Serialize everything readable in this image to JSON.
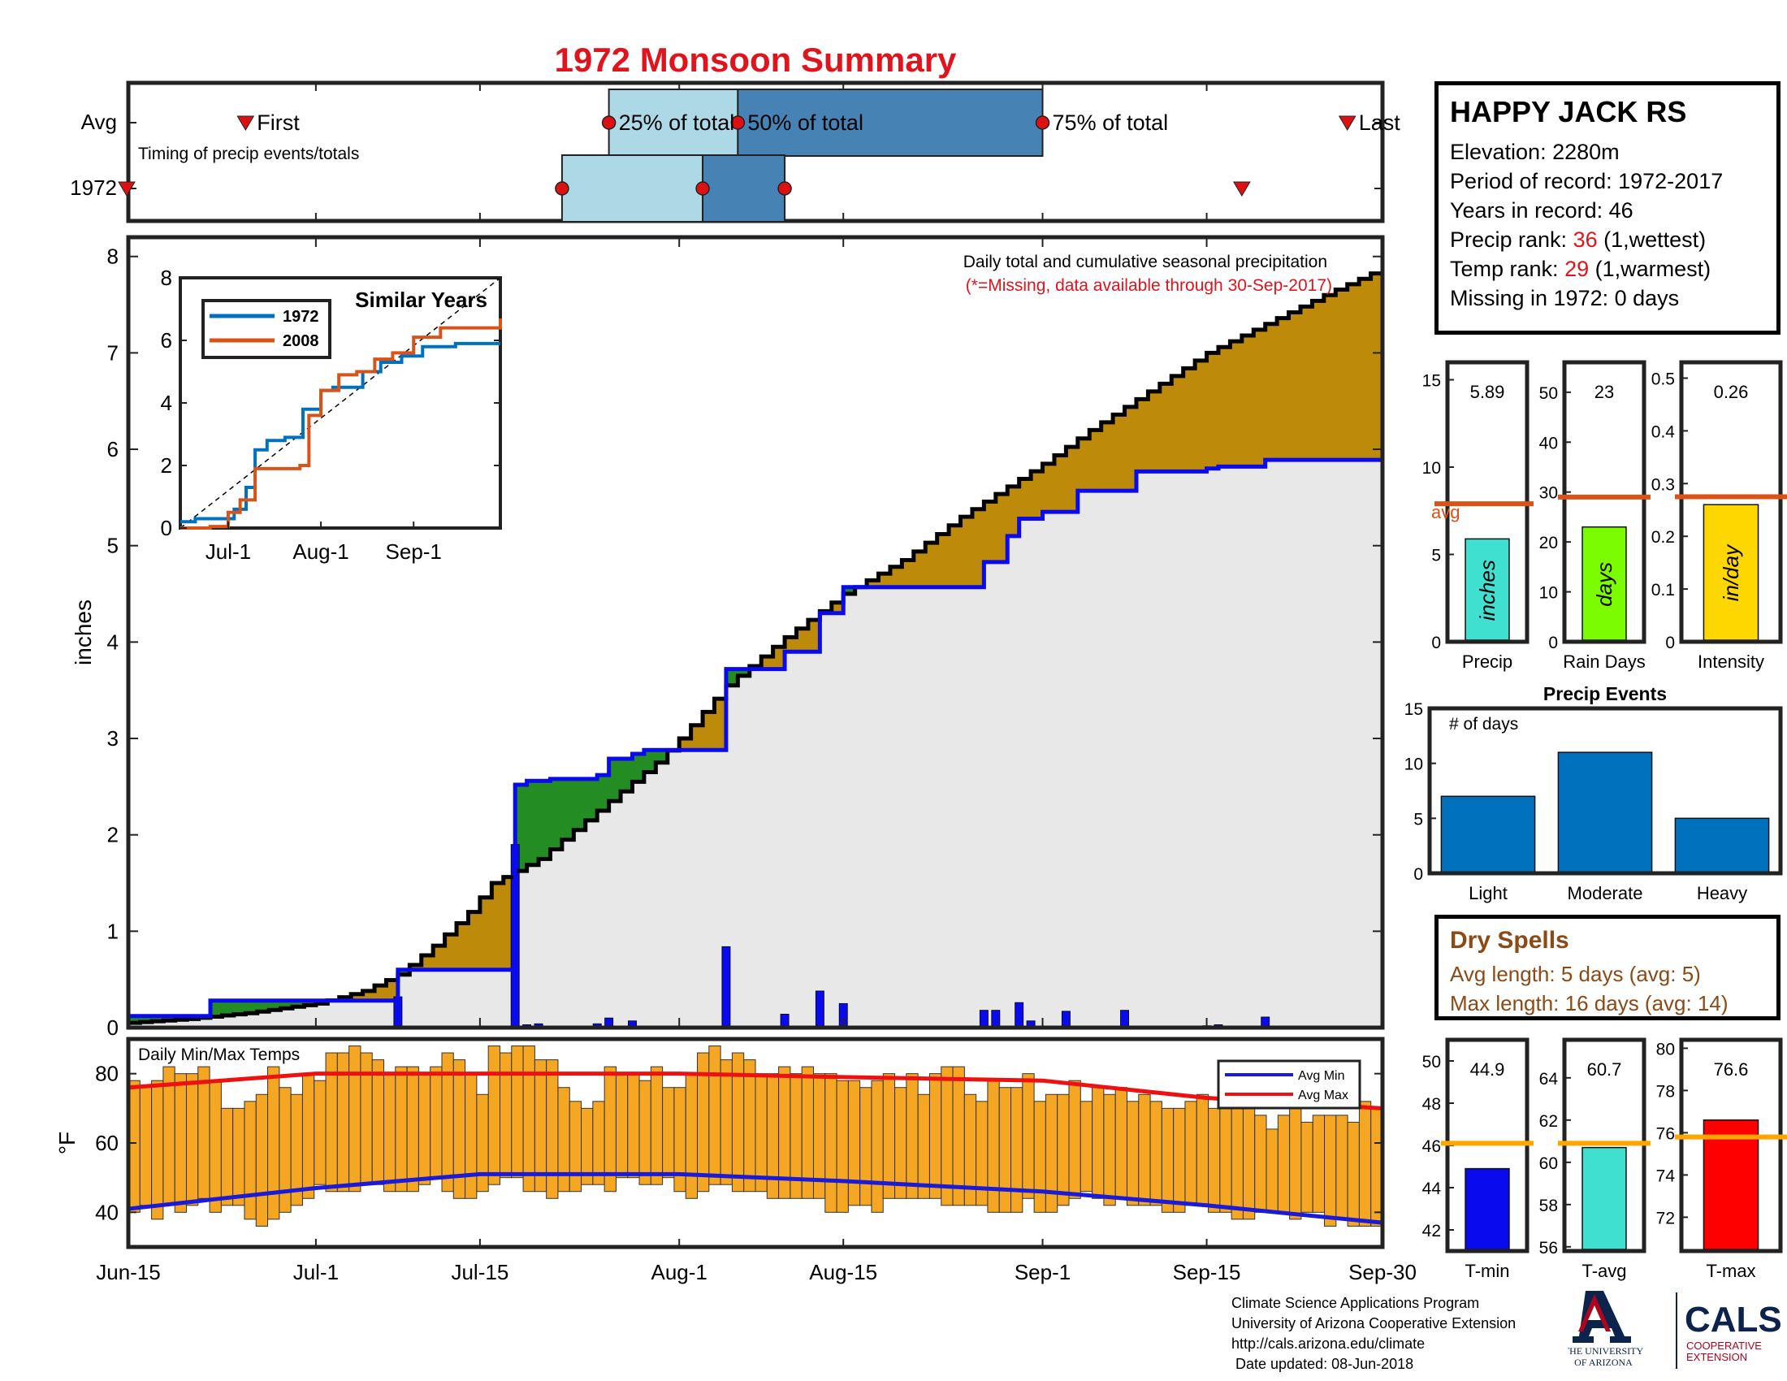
{
  "title": "1972 Monsoon Summary",
  "timing": {
    "row_avg_label": "Avg",
    "row_year_label": "1972",
    "caption": "Timing of precip events/totals",
    "first_label": "First",
    "last_label": "Last",
    "p25_label": "25% of total",
    "p50_label": "50% of total",
    "p75_label": "75% of total",
    "avg_days": {
      "first": 10,
      "p25": 41,
      "p50": 52,
      "p75": 78,
      "last": 104
    },
    "year_days": {
      "first": 0,
      "p25": 37,
      "p50": 49,
      "p75": 56,
      "last": 95
    }
  },
  "station": {
    "name": "HAPPY JACK RS",
    "elevation": "Elevation: 2280m",
    "period": "Period of record: 1972-2017",
    "years": "Years in record: 46",
    "precip_rank_prefix": "Precip rank: ",
    "precip_rank_value": "36",
    "precip_rank_suffix": " (1,wettest)",
    "temp_rank_prefix": "Temp rank: ",
    "temp_rank_value": "29",
    "temp_rank_suffix": " (1,warmest)",
    "missing": "Missing in 1972: 0 days"
  },
  "dry_spells": {
    "title": "Dry Spells",
    "avg_length": "Avg length: 5 days (avg: 5)",
    "max_length": "Max length: 16 days (avg: 14)"
  },
  "footer": {
    "line1": "Climate Science Applications Program",
    "line2": "University of Arizona Cooperative Extension",
    "line3": "http://cals.arizona.edu/climate",
    "line4": " Date updated: 08-Jun-2018",
    "logo_ua_line1": "THE UNIVERSITY",
    "logo_ua_line2": "OF ARIZONA",
    "logo_cals": "CALS",
    "logo_coop1": "COOPERATIVE",
    "logo_coop2": "EXTENSION"
  },
  "colors": {
    "avg_fill": "#bd8a0a",
    "ahead_fill": "#238c23",
    "below_fill": "#e8e8e8",
    "year_line": "#0a0aee",
    "avg_line": "#000000",
    "daily_bar": "#0a0aee",
    "temp_bar": "#f5a623",
    "avg_max": "#ee1111",
    "avg_min": "#1a1ad8",
    "timing_light": "#add8e6",
    "timing_dark": "#4682b4",
    "marker": "#dd1111",
    "precip_bar": "#40e0d0",
    "raindays_bar": "#7cfc00",
    "intensity_bar": "#ffd700",
    "ref_line": "#d95319",
    "events_bar": "#0072bd",
    "tmin_bar": "#0a0aee",
    "tavg_bar": "#40e0d0",
    "tmax_bar": "#ff0000",
    "temp_ref": "#ffa500",
    "sim_1972": "#0072bd",
    "sim_2008": "#d95319"
  },
  "chart_data": [
    {
      "type": "area",
      "id": "main-precip",
      "title": "Daily total and cumulative seasonal precipitation",
      "subtitle": "(*=Missing, data available through 30-Sep-2017)",
      "ylabel": "inches",
      "xlabel": "",
      "ylim": [
        0,
        8.2
      ],
      "x_start": "Jun-15",
      "x_end": "Sep-30",
      "x_ticks": [
        "Jun-15",
        "Jul-1",
        "Jul-15",
        "Aug-1",
        "Aug-15",
        "Sep-1",
        "Sep-15",
        "Sep-30"
      ],
      "y_ticks": [
        "0",
        "1",
        "2",
        "3",
        "4",
        "5",
        "6",
        "7",
        "8"
      ],
      "avg_cumulative": {
        "name": "Avg",
        "points": [
          [
            "Jun-15",
            0.05
          ],
          [
            "Jun-20",
            0.09
          ],
          [
            "Jun-25",
            0.15
          ],
          [
            "Jul-1",
            0.25
          ],
          [
            "Jul-5",
            0.38
          ],
          [
            "Jul-8",
            0.55
          ],
          [
            "Jul-11",
            0.85
          ],
          [
            "Jul-14",
            1.2
          ],
          [
            "Jul-16",
            1.5
          ],
          [
            "Jul-20",
            1.75
          ],
          [
            "Jul-25",
            2.25
          ],
          [
            "Jul-30",
            2.75
          ],
          [
            "Aug-1",
            3.0
          ],
          [
            "Aug-5",
            3.55
          ],
          [
            "Aug-10",
            4.05
          ],
          [
            "Aug-15",
            4.5
          ],
          [
            "Aug-20",
            4.85
          ],
          [
            "Aug-25",
            5.3
          ],
          [
            "Sep-1",
            5.85
          ],
          [
            "Sep-5",
            6.2
          ],
          [
            "Sep-10",
            6.6
          ],
          [
            "Sep-15",
            7.0
          ],
          [
            "Sep-20",
            7.3
          ],
          [
            "Sep-25",
            7.6
          ],
          [
            "Sep-30",
            7.88
          ]
        ]
      },
      "year_cumulative": {
        "name": "1972",
        "points": [
          [
            "Jun-15",
            0.12
          ],
          [
            "Jun-22",
            0.12
          ],
          [
            "Jun-22",
            0.28
          ],
          [
            "Jul-8",
            0.28
          ],
          [
            "Jul-8",
            0.6
          ],
          [
            "Jul-18",
            0.6
          ],
          [
            "Jul-18",
            2.52
          ],
          [
            "Jul-19",
            2.52
          ],
          [
            "Jul-19",
            2.56
          ],
          [
            "Jul-21",
            2.56
          ],
          [
            "Jul-21",
            2.58
          ],
          [
            "Jul-25",
            2.58
          ],
          [
            "Jul-25",
            2.62
          ],
          [
            "Jul-26",
            2.62
          ],
          [
            "Jul-26",
            2.79
          ],
          [
            "Jul-28",
            2.79
          ],
          [
            "Jul-28",
            2.84
          ],
          [
            "Jul-29",
            2.84
          ],
          [
            "Jul-29",
            2.88
          ],
          [
            "Aug-5",
            2.88
          ],
          [
            "Aug-5",
            3.72
          ],
          [
            "Aug-10",
            3.72
          ],
          [
            "Aug-10",
            3.9
          ],
          [
            "Aug-13",
            3.9
          ],
          [
            "Aug-13",
            4.3
          ],
          [
            "Aug-15",
            4.3
          ],
          [
            "Aug-15",
            4.57
          ],
          [
            "Aug-27",
            4.57
          ],
          [
            "Aug-27",
            4.83
          ],
          [
            "Aug-29",
            4.83
          ],
          [
            "Aug-29",
            5.1
          ],
          [
            "Aug-30",
            5.1
          ],
          [
            "Aug-30",
            5.28
          ],
          [
            "Sep-1",
            5.28
          ],
          [
            "Sep-1",
            5.35
          ],
          [
            "Sep-4",
            5.35
          ],
          [
            "Sep-4",
            5.57
          ],
          [
            "Sep-9",
            5.57
          ],
          [
            "Sep-9",
            5.77
          ],
          [
            "Sep-15",
            5.77
          ],
          [
            "Sep-15",
            5.8
          ],
          [
            "Sep-16",
            5.8
          ],
          [
            "Sep-16",
            5.82
          ],
          [
            "Sep-20",
            5.82
          ],
          [
            "Sep-20",
            5.89
          ],
          [
            "Sep-30",
            5.89
          ]
        ]
      },
      "daily_precip": [
        [
          "Jul-8",
          0.32
        ],
        [
          "Jul-18",
          1.9
        ],
        [
          "Jul-19",
          0.03
        ],
        [
          "Jul-20",
          0.04
        ],
        [
          "Jul-25",
          0.04
        ],
        [
          "Jul-26",
          0.1
        ],
        [
          "Jul-28",
          0.07
        ],
        [
          "Aug-5",
          0.84
        ],
        [
          "Aug-10",
          0.14
        ],
        [
          "Aug-13",
          0.38
        ],
        [
          "Aug-15",
          0.25
        ],
        [
          "Aug-27",
          0.18
        ],
        [
          "Aug-28",
          0.18
        ],
        [
          "Aug-30",
          0.26
        ],
        [
          "Aug-31",
          0.07
        ],
        [
          "Sep-3",
          0.17
        ],
        [
          "Sep-8",
          0.18
        ],
        [
          "Sep-15",
          0.02
        ],
        [
          "Sep-16",
          0.03
        ],
        [
          "Sep-20",
          0.11
        ]
      ]
    },
    {
      "type": "line",
      "id": "similar-years",
      "title": "Similar Years",
      "ylim": [
        0,
        8
      ],
      "x_ticks": [
        "Jul-1",
        "Aug-1",
        "Sep-1"
      ],
      "y_ticks": [
        "0",
        "2",
        "4",
        "6",
        "8"
      ],
      "series": [
        {
          "name": "1972",
          "points": [
            [
              "Jun-15",
              0.2
            ],
            [
              "Jun-20",
              0.3
            ],
            [
              "Jun-28",
              0.3
            ],
            [
              "Jul-3",
              0.6
            ],
            [
              "Jul-7",
              1.3
            ],
            [
              "Jul-10",
              2.5
            ],
            [
              "Jul-14",
              2.8
            ],
            [
              "Jul-20",
              2.9
            ],
            [
              "Jul-26",
              3.8
            ],
            [
              "Aug-1",
              4.4
            ],
            [
              "Aug-5",
              4.5
            ],
            [
              "Aug-12",
              4.5
            ],
            [
              "Aug-15",
              5.0
            ],
            [
              "Aug-21",
              5.3
            ],
            [
              "Aug-28",
              5.5
            ],
            [
              "Sep-4",
              5.8
            ],
            [
              "Sep-15",
              5.9
            ],
            [
              "Sep-30",
              5.9
            ]
          ]
        },
        {
          "name": "2008",
          "points": [
            [
              "Jun-15",
              0.0
            ],
            [
              "Jun-25",
              0.05
            ],
            [
              "Jul-1",
              0.5
            ],
            [
              "Jul-5",
              0.9
            ],
            [
              "Jul-10",
              1.9
            ],
            [
              "Jul-22",
              1.9
            ],
            [
              "Jul-25",
              2.0
            ],
            [
              "Jul-28",
              3.6
            ],
            [
              "Aug-1",
              4.4
            ],
            [
              "Aug-7",
              4.9
            ],
            [
              "Aug-13",
              5.0
            ],
            [
              "Aug-19",
              5.4
            ],
            [
              "Aug-25",
              5.6
            ],
            [
              "Sep-1",
              6.1
            ],
            [
              "Sep-10",
              6.4
            ],
            [
              "Sep-20",
              6.4
            ],
            [
              "Sep-30",
              6.7
            ]
          ]
        }
      ]
    },
    {
      "type": "bar",
      "id": "daily-temps",
      "title": "Daily Min/Max Temps",
      "ylabel": "°F",
      "ylim": [
        30,
        90
      ],
      "y_ticks": [
        "40",
        "60",
        "80"
      ],
      "legend": [
        "Avg Min",
        "Avg Max"
      ],
      "legend_position": "top-right",
      "avg_max": [
        [
          "Jun-15",
          76
        ],
        [
          "Jul-1",
          80
        ],
        [
          "Jul-15",
          80
        ],
        [
          "Aug-1",
          80
        ],
        [
          "Aug-15",
          79
        ],
        [
          "Sep-1",
          78
        ],
        [
          "Sep-15",
          73
        ],
        [
          "Sep-30",
          70
        ]
      ],
      "avg_min": [
        [
          "Jun-15",
          41
        ],
        [
          "Jul-1",
          47
        ],
        [
          "Jul-15",
          51
        ],
        [
          "Aug-1",
          51
        ],
        [
          "Aug-15",
          49
        ],
        [
          "Sep-1",
          46
        ],
        [
          "Sep-15",
          42
        ],
        [
          "Sep-30",
          37
        ]
      ],
      "daily_max_sample": [
        78,
        76,
        78,
        82,
        80,
        80,
        82,
        78,
        70,
        70,
        72,
        74,
        82,
        76,
        74,
        80,
        78,
        86,
        86,
        88,
        86,
        84,
        80,
        82,
        82,
        80,
        82,
        86,
        84,
        80,
        74,
        88,
        86,
        88,
        88,
        84,
        84,
        76,
        72,
        70,
        72,
        82,
        80,
        80,
        78,
        82,
        76,
        76,
        80,
        86,
        88,
        84,
        86,
        84,
        80,
        80,
        82,
        80,
        82,
        80,
        80,
        78,
        78,
        76,
        78,
        80,
        76,
        80,
        74,
        80,
        82,
        82,
        74,
        72,
        78,
        76,
        76,
        80,
        72,
        74,
        74,
        78,
        72,
        76,
        74,
        76,
        72,
        74,
        72,
        70,
        70,
        72,
        74,
        70,
        70,
        72,
        72,
        68,
        64,
        68,
        70,
        66,
        68,
        68,
        68,
        66,
        72,
        70
      ],
      "daily_min_sample": [
        40,
        42,
        38,
        42,
        40,
        42,
        44,
        40,
        42,
        42,
        38,
        36,
        38,
        40,
        42,
        44,
        48,
        46,
        46,
        46,
        48,
        48,
        46,
        46,
        46,
        48,
        50,
        46,
        44,
        44,
        46,
        48,
        50,
        50,
        46,
        46,
        44,
        46,
        46,
        48,
        48,
        46,
        50,
        50,
        48,
        48,
        50,
        46,
        44,
        46,
        48,
        48,
        46,
        46,
        46,
        44,
        44,
        44,
        44,
        44,
        40,
        40,
        42,
        42,
        40,
        44,
        44,
        44,
        44,
        44,
        42,
        42,
        42,
        42,
        40,
        40,
        40,
        44,
        40,
        40,
        42,
        44,
        46,
        44,
        42,
        44,
        42,
        42,
        42,
        40,
        40,
        42,
        42,
        40,
        40,
        38,
        38,
        40,
        40,
        40,
        38,
        40,
        40,
        36,
        38,
        36,
        36,
        36
      ]
    },
    {
      "type": "bar",
      "id": "precip-stat",
      "xlabel": "Precip",
      "value_label": "5.89",
      "bar_label": "inches",
      "value": 5.89,
      "avg": 7.9,
      "avg_label": "avg",
      "ylim": [
        0,
        16
      ],
      "y_ticks": [
        "0",
        "5",
        "10",
        "15"
      ]
    },
    {
      "type": "bar",
      "id": "raindays-stat",
      "xlabel": "Rain Days",
      "value_label": "23",
      "bar_label": "days",
      "value": 23,
      "avg": 29,
      "ylim": [
        0,
        56
      ],
      "y_ticks": [
        "0",
        "10",
        "20",
        "30",
        "40",
        "50"
      ]
    },
    {
      "type": "bar",
      "id": "intensity-stat",
      "xlabel": "Intensity",
      "value_label": "0.26",
      "bar_label": "in/day",
      "value": 0.26,
      "avg": 0.275,
      "ylim": [
        0,
        0.53
      ],
      "y_ticks": [
        "0",
        "0.1",
        "0.2",
        "0.3",
        "0.4",
        "0.5"
      ]
    },
    {
      "type": "bar",
      "id": "precip-events",
      "title": "Precip Events",
      "ylabel": "# of days",
      "categories": [
        "Light",
        "Moderate",
        "Heavy"
      ],
      "values": [
        7,
        11,
        5
      ],
      "ylim": [
        0,
        15
      ],
      "y_ticks": [
        "0",
        "5",
        "10",
        "15"
      ]
    },
    {
      "type": "bar",
      "id": "tmin-stat",
      "xlabel": "T-min",
      "value_label": "44.9",
      "value": 44.9,
      "avg": 46.1,
      "ylim": [
        41,
        51
      ],
      "y_ticks": [
        "42",
        "44",
        "46",
        "48",
        "50"
      ]
    },
    {
      "type": "bar",
      "id": "tavg-stat",
      "xlabel": "T-avg",
      "value_label": "60.7",
      "value": 60.7,
      "avg": 60.9,
      "ylim": [
        55.8,
        65.8
      ],
      "y_ticks": [
        "56",
        "58",
        "60",
        "62",
        "64"
      ]
    },
    {
      "type": "bar",
      "id": "tmax-stat",
      "xlabel": "T-max",
      "value_label": "76.6",
      "value": 76.6,
      "avg": 75.8,
      "ylim": [
        70.4,
        80.4
      ],
      "y_ticks": [
        "72",
        "74",
        "76",
        "78",
        "80"
      ]
    }
  ]
}
